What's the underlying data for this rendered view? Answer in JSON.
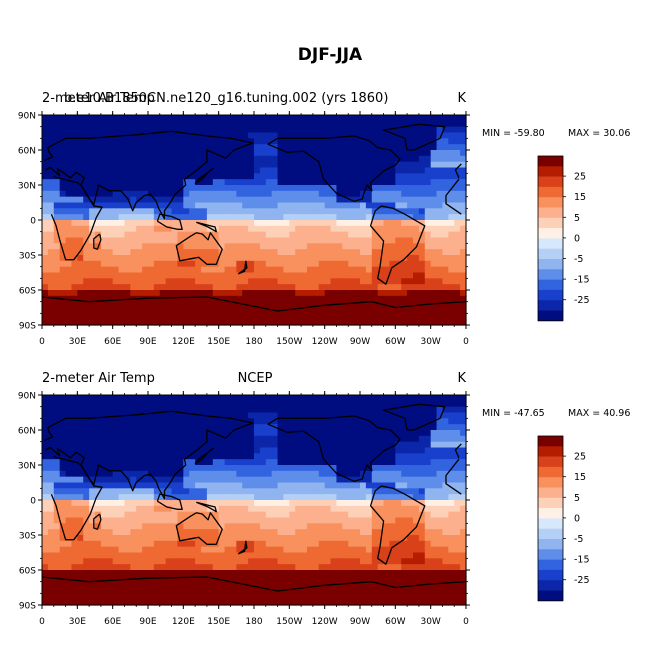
{
  "title": "DJF-JJA",
  "chart_data": {
    "type": "heatmap",
    "title": "DJF-JJA",
    "panels": [
      {
        "left_label": "2-meter Air Temp",
        "overlay_label": "b.e10.B1850CN.ne120_g16.tuning.002 (yrs 1860)",
        "center_label": "",
        "units": "K",
        "min_label": "MIN = -59.80",
        "max_label": "MAX =  30.06",
        "min": -59.8,
        "max": 30.06
      },
      {
        "left_label": "2-meter Air Temp",
        "overlay_label": "",
        "center_label": "NCEP",
        "units": "K",
        "min_label": "MIN = -47.65",
        "max_label": "MAX =  40.96",
        "min": -47.65,
        "max": 40.96
      }
    ],
    "y_ticks": [
      "90N",
      "60N",
      "30N",
      "0",
      "30S",
      "60S",
      "90S"
    ],
    "x_ticks": [
      "0",
      "30E",
      "60E",
      "90E",
      "120E",
      "150E",
      "180",
      "150W",
      "120W",
      "90W",
      "60W",
      "30W",
      "0"
    ],
    "colorbar": {
      "labels": [
        "25",
        "15",
        "5",
        "0",
        "-5",
        "-15",
        "-25"
      ],
      "colors": [
        "#7a0000",
        "#b51d00",
        "#d8411a",
        "#ef6a33",
        "#f8915e",
        "#fdb08e",
        "#fdd0b8",
        "#fff0e6",
        "#d8e8fc",
        "#b4d0f6",
        "#8fb4f0",
        "#5f8eea",
        "#3264e0",
        "#1940cc",
        "#0b26a8",
        "#000d80"
      ]
    },
    "xlim": [
      0,
      360
    ],
    "ylim": [
      -90,
      90
    ]
  }
}
